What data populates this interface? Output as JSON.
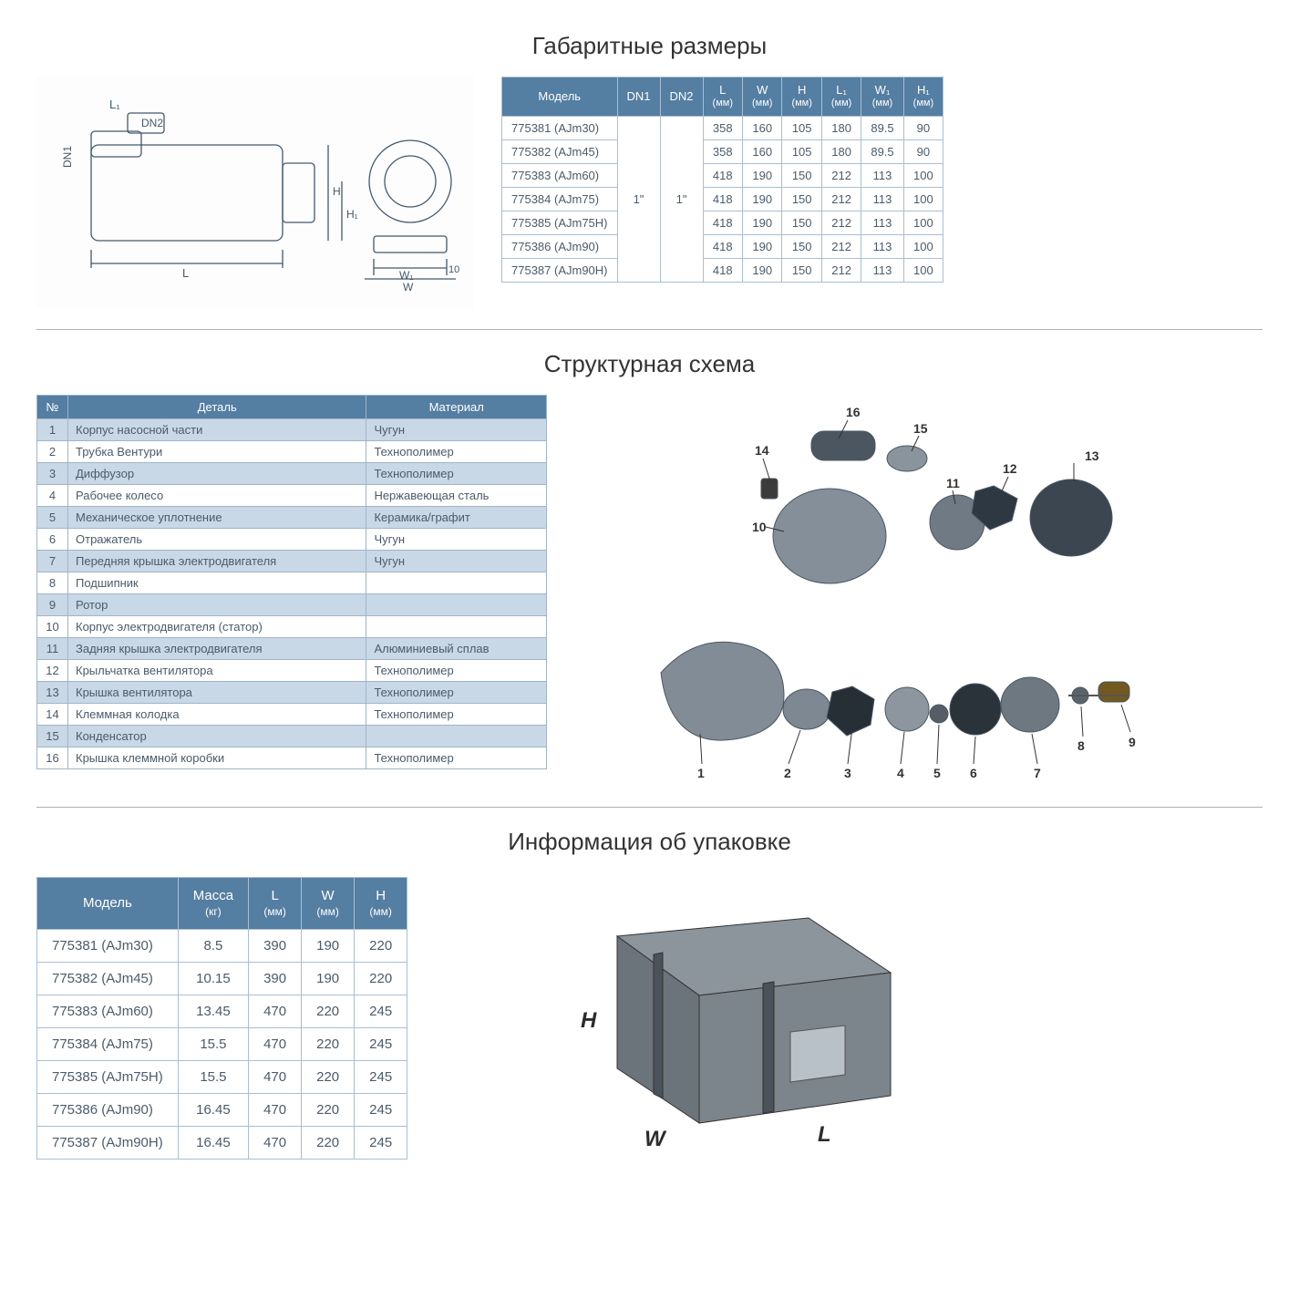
{
  "colors": {
    "header_bg": "#547ea2",
    "header_text": "#ffffff",
    "border": "#a9bfd2",
    "cell_text": "#4a5b6a",
    "alt_row_bg": "#c9d8e6",
    "page_bg": "#ffffff",
    "title_color": "#333333"
  },
  "section1": {
    "title": "Габаритные размеры",
    "drawing_labels": [
      "L₁",
      "DN2",
      "DN1",
      "H",
      "H₁",
      "L",
      "W₁",
      "W",
      "10"
    ],
    "table": {
      "columns": [
        {
          "label": "Модель",
          "sub": null
        },
        {
          "label": "DN1",
          "sub": null
        },
        {
          "label": "DN2",
          "sub": null
        },
        {
          "label": "L",
          "sub": "(мм)"
        },
        {
          "label": "W",
          "sub": "(мм)"
        },
        {
          "label": "H",
          "sub": "(мм)"
        },
        {
          "label": "L₁",
          "sub": "(мм)"
        },
        {
          "label": "W₁",
          "sub": "(мм)"
        },
        {
          "label": "H₁",
          "sub": "(мм)"
        }
      ],
      "dn1": "1\"",
      "dn2": "1\"",
      "rows": [
        {
          "model": "775381 (AJm30)",
          "L": "358",
          "W": "160",
          "H": "105",
          "L1": "180",
          "W1": "89.5",
          "H1": "90"
        },
        {
          "model": "775382 (AJm45)",
          "L": "358",
          "W": "160",
          "H": "105",
          "L1": "180",
          "W1": "89.5",
          "H1": "90"
        },
        {
          "model": "775383 (AJm60)",
          "L": "418",
          "W": "190",
          "H": "150",
          "L1": "212",
          "W1": "113",
          "H1": "100"
        },
        {
          "model": "775384 (AJm75)",
          "L": "418",
          "W": "190",
          "H": "150",
          "L1": "212",
          "W1": "113",
          "H1": "100"
        },
        {
          "model": "775385 (AJm75H)",
          "L": "418",
          "W": "190",
          "H": "150",
          "L1": "212",
          "W1": "113",
          "H1": "100"
        },
        {
          "model": "775386 (AJm90)",
          "L": "418",
          "W": "190",
          "H": "150",
          "L1": "212",
          "W1": "113",
          "H1": "100"
        },
        {
          "model": "775387 (AJm90H)",
          "L": "418",
          "W": "190",
          "H": "150",
          "L1": "212",
          "W1": "113",
          "H1": "100"
        }
      ]
    }
  },
  "section2": {
    "title": "Структурная схема",
    "table": {
      "columns": [
        "№",
        "Деталь",
        "Материал"
      ],
      "rows": [
        {
          "n": "1",
          "part": "Корпус насосной части",
          "mat": "Чугун"
        },
        {
          "n": "2",
          "part": "Трубка Вентури",
          "mat": "Технополимер"
        },
        {
          "n": "3",
          "part": "Диффузор",
          "mat": "Технополимер"
        },
        {
          "n": "4",
          "part": "Рабочее колесо",
          "mat": "Нержавеющая сталь"
        },
        {
          "n": "5",
          "part": "Механическое уплотнение",
          "mat": "Керамика/графит"
        },
        {
          "n": "6",
          "part": "Отражатель",
          "mat": "Чугун"
        },
        {
          "n": "7",
          "part": "Передняя крышка электродвигателя",
          "mat": "Чугун"
        },
        {
          "n": "8",
          "part": "Подшипник",
          "mat": ""
        },
        {
          "n": "9",
          "part": "Ротор",
          "mat": ""
        },
        {
          "n": "10",
          "part": "Корпус электродвигателя (статор)",
          "mat": ""
        },
        {
          "n": "11",
          "part": "Задняя крышка электродвигателя",
          "mat": "Алюминиевый сплав"
        },
        {
          "n": "12",
          "part": "Крыльчатка вентилятора",
          "mat": "Технополимер"
        },
        {
          "n": "13",
          "part": "Крышка вентилятора",
          "mat": "Технополимер"
        },
        {
          "n": "14",
          "part": "Клеммная колодка",
          "mat": "Технополимер"
        },
        {
          "n": "15",
          "part": "Конденсатор",
          "mat": ""
        },
        {
          "n": "16",
          "part": "Крышка клеммной коробки",
          "mat": "Технополимер"
        }
      ]
    },
    "callouts": [
      "1",
      "2",
      "3",
      "4",
      "5",
      "6",
      "7",
      "8",
      "9",
      "10",
      "11",
      "12",
      "13",
      "14",
      "15",
      "16"
    ]
  },
  "section3": {
    "title": "Информация об упаковке",
    "table": {
      "columns": [
        {
          "label": "Модель",
          "sub": null
        },
        {
          "label": "Масса",
          "sub": "(кг)"
        },
        {
          "label": "L",
          "sub": "(мм)"
        },
        {
          "label": "W",
          "sub": "(мм)"
        },
        {
          "label": "H",
          "sub": "(мм)"
        }
      ],
      "rows": [
        {
          "model": "775381 (AJm30)",
          "mass": "8.5",
          "L": "390",
          "W": "190",
          "H": "220"
        },
        {
          "model": "775382 (AJm45)",
          "mass": "10.15",
          "L": "390",
          "W": "190",
          "H": "220"
        },
        {
          "model": "775383 (AJm60)",
          "mass": "13.45",
          "L": "470",
          "W": "220",
          "H": "245"
        },
        {
          "model": "775384 (AJm75)",
          "mass": "15.5",
          "L": "470",
          "W": "220",
          "H": "245"
        },
        {
          "model": "775385 (AJm75H)",
          "mass": "15.5",
          "L": "470",
          "W": "220",
          "H": "245"
        },
        {
          "model": "775386 (AJm90)",
          "mass": "16.45",
          "L": "470",
          "W": "220",
          "H": "245"
        },
        {
          "model": "775387 (AJm90H)",
          "mass": "16.45",
          "L": "470",
          "W": "220",
          "H": "245"
        }
      ]
    },
    "box_labels": [
      "H",
      "W",
      "L"
    ]
  }
}
